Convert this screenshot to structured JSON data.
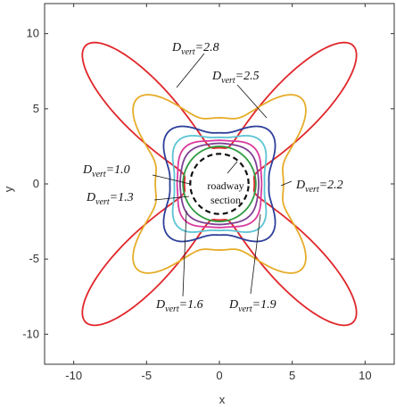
{
  "chart_data": {
    "type": "line",
    "title": "",
    "xlabel": "x",
    "ylabel": "y",
    "xlim": [
      -12,
      12
    ],
    "ylim": [
      -12,
      12
    ],
    "xticks": [
      -10,
      -5,
      0,
      5,
      10
    ],
    "yticks": [
      -10,
      -5,
      0,
      5,
      10
    ],
    "x_tick_labels": [
      "-10",
      "-5",
      "0",
      "5",
      "10"
    ],
    "y_tick_labels": [
      "-10",
      "-5",
      "0",
      "5",
      "10"
    ],
    "grid": false,
    "legend": "none",
    "series": [
      {
        "color": "#2e9b43",
        "style": "solid",
        "shape": {
          "kind": "circle",
          "r": 2.5
        }
      },
      {
        "color": "#7e3f93",
        "style": "solid",
        "shape": {
          "kind": "flower",
          "r0": 2.7,
          "e4": 0.1,
          "p": 3
        }
      },
      {
        "color": "#d9399e",
        "style": "solid",
        "shape": {
          "kind": "flower",
          "r0": 2.9,
          "e4": 0.17,
          "p": 3
        }
      },
      {
        "color": "#5cc4d4",
        "style": "solid",
        "shape": {
          "kind": "flower",
          "r0": 3.1,
          "e4": 0.3,
          "p": 3
        }
      },
      {
        "color": "#2d3f9a",
        "style": "solid",
        "shape": {
          "kind": "flower",
          "r0": 3.4,
          "e4": 0.45,
          "p": 3
        }
      },
      {
        "color": "#e6ac29",
        "style": "solid",
        "shape": {
          "kind": "flower",
          "r0": 4.4,
          "e4": 0.82,
          "p": 5
        }
      },
      {
        "color": "#e0262a",
        "style": "solid",
        "shape": {
          "kind": "lobes",
          "base": 2.4,
          "ext": 10.6,
          "p": 6
        }
      },
      {
        "color": "#111111",
        "style": "dashed",
        "shape": {
          "kind": "circle",
          "r": 2.0
        }
      }
    ],
    "annotations": [
      {
        "main": "D",
        "sub": "vert",
        "value": "=2.8"
      },
      {
        "main": "D",
        "sub": "vert",
        "value": "=2.5"
      },
      {
        "main": "D",
        "sub": "vert",
        "value": "=2.2"
      },
      {
        "main": "D",
        "sub": "vert",
        "value": "=1.0"
      },
      {
        "main": "D",
        "sub": "vert",
        "value": "=1.3"
      },
      {
        "main": "D",
        "sub": "vert",
        "value": "=1.6"
      },
      {
        "main": "D",
        "sub": "vert",
        "value": "=1.9"
      }
    ],
    "section_label": [
      "roadway",
      "section"
    ]
  }
}
